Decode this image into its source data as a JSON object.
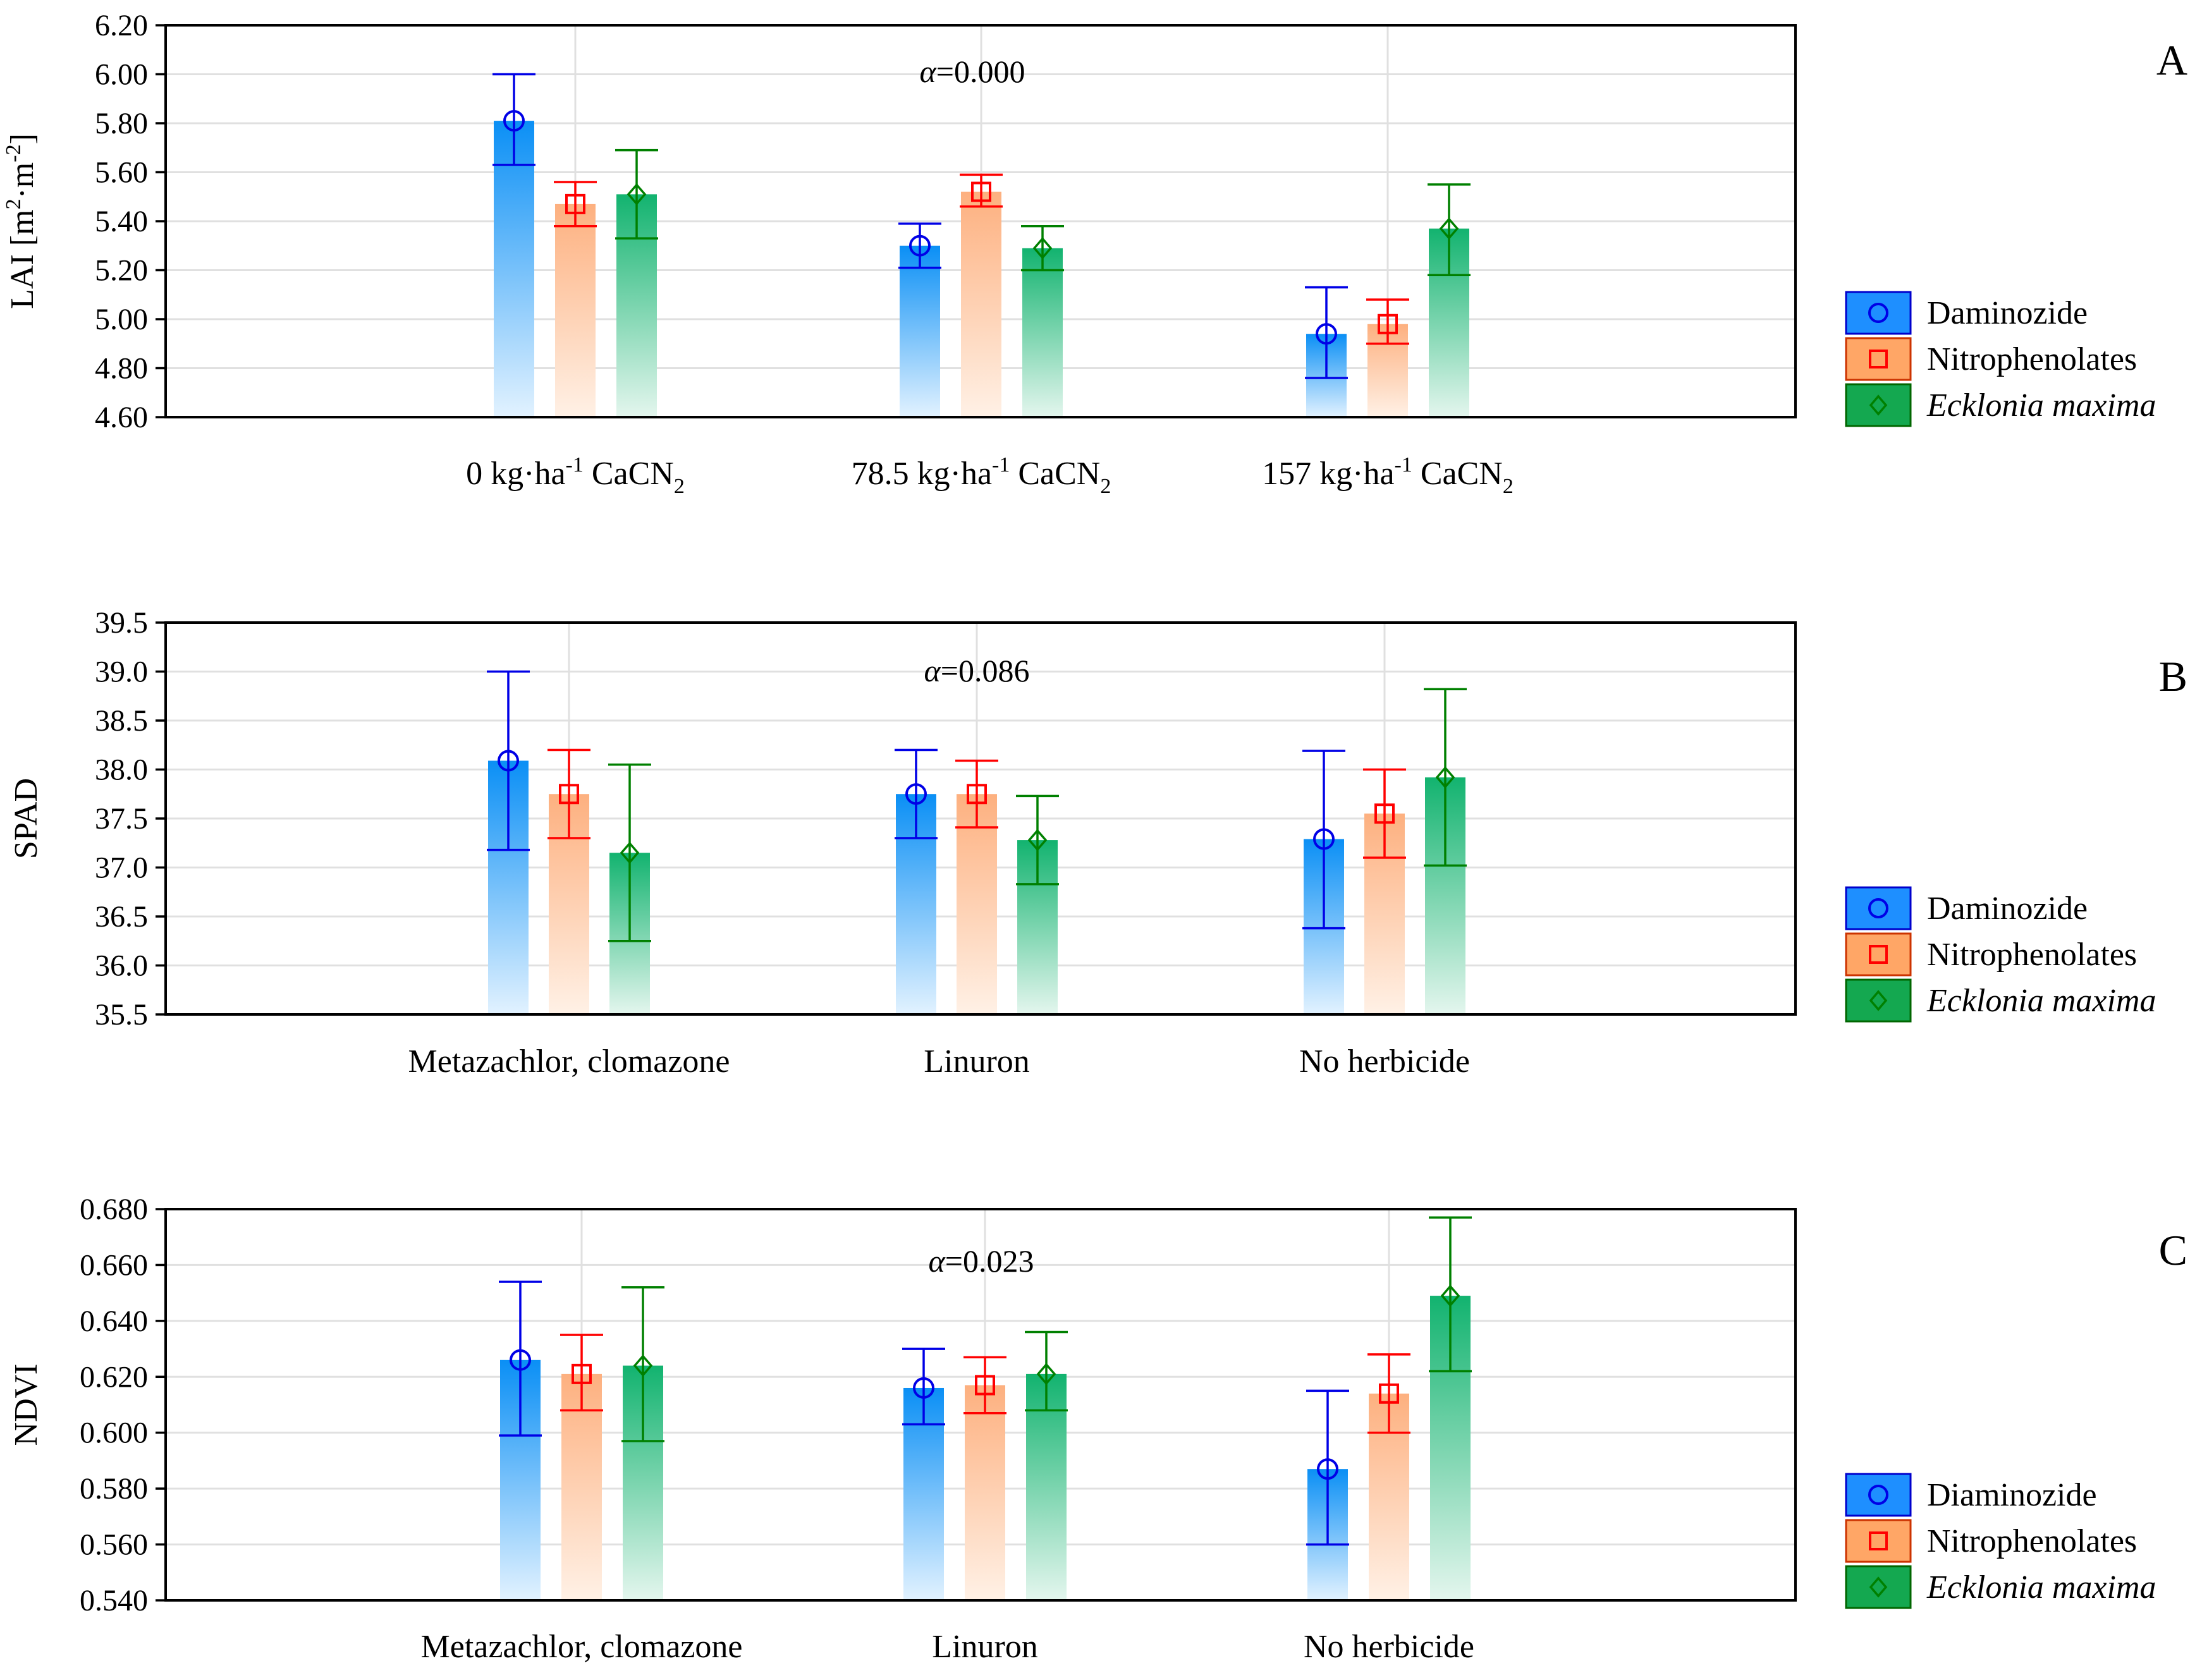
{
  "chart_data": [
    {
      "type": "bar",
      "panel_letter": "A",
      "ylabel": "LAI [m²·m⁻²]",
      "ylabel_parts": {
        "base": "LAI [m",
        "sup1": "2",
        "mid": "·m",
        "sup2": "-2",
        "end": "]"
      },
      "annotation": {
        "symbol": "α",
        "text": "=0.000"
      },
      "ylim": [
        4.6,
        6.2
      ],
      "yticks": [
        "4.60",
        "4.80",
        "5.00",
        "5.20",
        "5.40",
        "5.60",
        "5.80",
        "6.00",
        "6.20"
      ],
      "categories": [
        {
          "pre": "0 kg·ha",
          "sup": "-1",
          "mid": " CaCN",
          "sub": "2"
        },
        {
          "pre": "78.5 kg·ha",
          "sup": "-1",
          "mid": " CaCN",
          "sub": "2"
        },
        {
          "pre": "157 kg·ha",
          "sup": "-1",
          "mid": " CaCN",
          "sub": "2"
        }
      ],
      "series": [
        {
          "name": "Daminozide",
          "italic": false,
          "values": [
            5.81,
            5.3,
            4.94
          ],
          "err_low": [
            5.63,
            5.21,
            4.76
          ],
          "err_high": [
            6.0,
            5.39,
            5.13
          ]
        },
        {
          "name": "Nitrophenolates",
          "italic": false,
          "values": [
            5.47,
            5.52,
            4.98
          ],
          "err_low": [
            5.38,
            5.46,
            4.9
          ],
          "err_high": [
            5.56,
            5.59,
            5.08
          ]
        },
        {
          "name": "Ecklonia maxima",
          "italic": true,
          "values": [
            5.51,
            5.29,
            5.37
          ],
          "err_low": [
            5.33,
            5.2,
            5.18
          ],
          "err_high": [
            5.69,
            5.38,
            5.55
          ]
        }
      ]
    },
    {
      "type": "bar",
      "panel_letter": "B",
      "ylabel": "SPAD",
      "annotation": {
        "symbol": "α",
        "text": "=0.086"
      },
      "ylim": [
        35.5,
        39.5
      ],
      "yticks": [
        "35.5",
        "36.0",
        "36.5",
        "37.0",
        "37.5",
        "38.0",
        "38.5",
        "39.0",
        "39.5"
      ],
      "categories": [
        {
          "pre": "Metazachlor, clomazone"
        },
        {
          "pre": "Linuron"
        },
        {
          "pre": "No herbicide"
        }
      ],
      "series": [
        {
          "name": "Daminozide",
          "italic": false,
          "values": [
            38.09,
            37.75,
            37.29
          ],
          "err_low": [
            37.18,
            37.3,
            36.38
          ],
          "err_high": [
            39.0,
            38.2,
            38.19
          ]
        },
        {
          "name": "Nitrophenolates",
          "italic": false,
          "values": [
            37.75,
            37.75,
            37.55
          ],
          "err_low": [
            37.3,
            37.41,
            37.1
          ],
          "err_high": [
            38.2,
            38.09,
            38.0
          ]
        },
        {
          "name": "Ecklonia maxima",
          "italic": true,
          "values": [
            37.15,
            37.28,
            37.92
          ],
          "err_low": [
            36.25,
            36.83,
            37.02
          ],
          "err_high": [
            38.05,
            37.73,
            38.82
          ]
        }
      ]
    },
    {
      "type": "bar",
      "panel_letter": "C",
      "ylabel": "NDVI",
      "annotation": {
        "symbol": "α",
        "text": "=0.023"
      },
      "ylim": [
        0.54,
        0.68
      ],
      "yticks": [
        "0.540",
        "0.560",
        "0.580",
        "0.600",
        "0.620",
        "0.640",
        "0.660",
        "0.680"
      ],
      "categories": [
        {
          "pre": "Metazachlor, clomazone"
        },
        {
          "pre": "Linuron"
        },
        {
          "pre": "No herbicide"
        }
      ],
      "series": [
        {
          "name": "Diaminozide",
          "italic": false,
          "values": [
            0.626,
            0.616,
            0.587
          ],
          "err_low": [
            0.599,
            0.603,
            0.56
          ],
          "err_high": [
            0.654,
            0.63,
            0.615
          ]
        },
        {
          "name": "Nitrophenolates",
          "italic": false,
          "values": [
            0.621,
            0.617,
            0.614
          ],
          "err_low": [
            0.608,
            0.607,
            0.6
          ],
          "err_high": [
            0.635,
            0.627,
            0.628
          ]
        },
        {
          "name": "Ecklonia maxima",
          "italic": true,
          "values": [
            0.624,
            0.621,
            0.649
          ],
          "err_low": [
            0.597,
            0.608,
            0.622
          ],
          "err_high": [
            0.652,
            0.636,
            0.677
          ]
        }
      ]
    }
  ],
  "colors": {
    "series_line": [
      "#0000e6",
      "#ff0000",
      "#008000"
    ],
    "bar_top": [
      "#0a8ff5",
      "#fdb07f",
      "#12b36f"
    ],
    "bar_bottom": [
      "#e2f2ff",
      "#fff1e6",
      "#e4f6ee"
    ],
    "legend_fill": [
      "#1e8fff",
      "#ffa666",
      "#14a850"
    ],
    "legend_stroke": [
      "#0000cc",
      "#cc3300",
      "#006600"
    ],
    "grid": "#e0e0e0"
  }
}
